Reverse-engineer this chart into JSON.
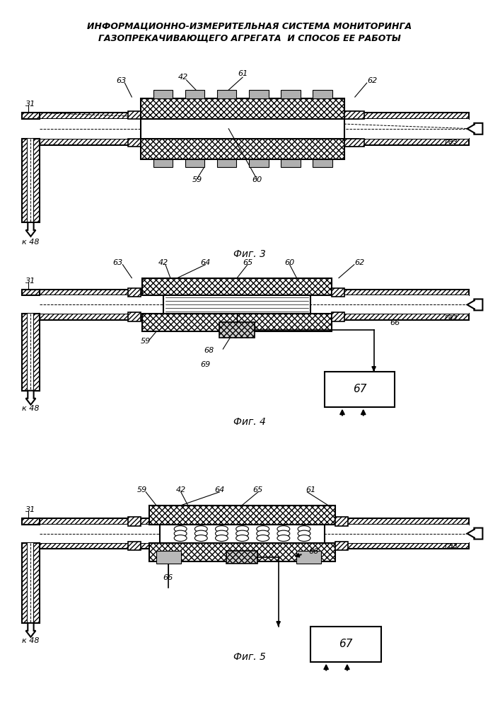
{
  "title_line1": "ИНФОРМАЦИОННО-ИЗМЕРИТЕЛЬНАЯ СИСТЕМА МОНИТОРИНГА",
  "title_line2": "ГАЗОПРЕКАЧИВАЮЩЕГО АГРЕГАТА  И СПОСОБ ЕЕ РАБОТЫ",
  "fig3_label": "Фиг. 3",
  "fig4_label": "Фиг. 4",
  "fig5_label": "Фиг. 5",
  "bg": "#ffffff"
}
